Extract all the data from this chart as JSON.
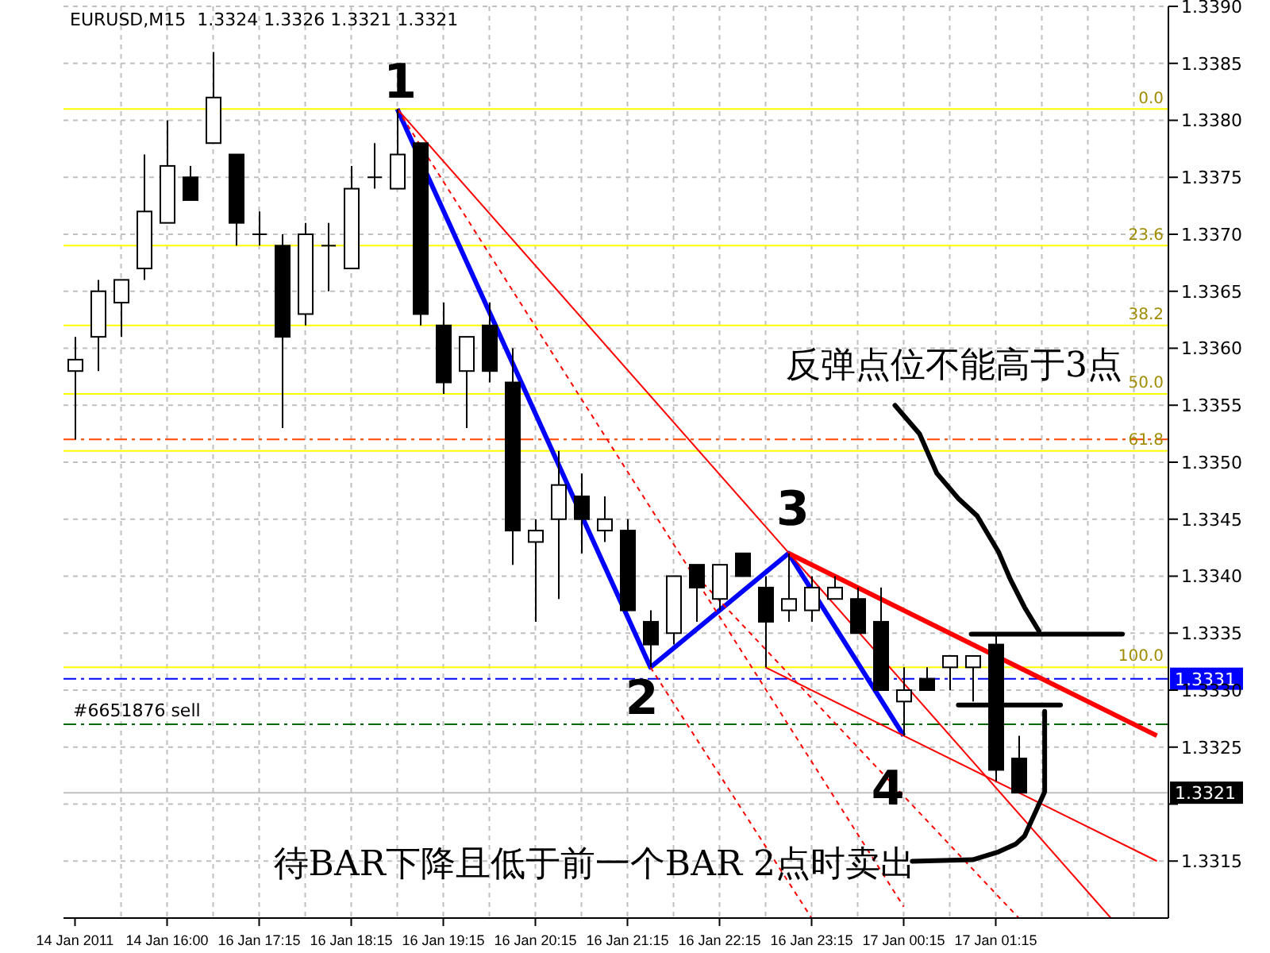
{
  "chart_data": {
    "type": "candlestick",
    "title": "EURUSD,M15  1.3324 1.3326 1.3321 1.3321",
    "categories": [
      "14 Jan 2011",
      null,
      null,
      null,
      "14 Jan 16:00",
      null,
      null,
      null,
      "16 Jan 17:15",
      null,
      null,
      null,
      "16 Jan 18:15",
      null,
      null,
      null,
      "16 Jan 19:15",
      null,
      null,
      null,
      "16 Jan 20:15",
      null,
      null,
      null,
      "16 Jan 21:15",
      null,
      null,
      null,
      "16 Jan 22:15",
      null,
      null,
      null,
      "16 Jan 23:15",
      null,
      null,
      null,
      "17 Jan 00:15",
      null,
      null,
      null,
      "17 Jan 01:15",
      null,
      null,
      null,
      null,
      null,
      null,
      null
    ],
    "ohlc": [
      [
        1.3358,
        1.3361,
        1.3352,
        1.3359
      ],
      [
        1.3361,
        1.3366,
        1.3358,
        1.3365
      ],
      [
        1.3364,
        1.3366,
        1.3361,
        1.3366
      ],
      [
        1.3367,
        1.3377,
        1.3366,
        1.3372
      ],
      [
        1.3371,
        1.338,
        1.3371,
        1.3376
      ],
      [
        1.3375,
        1.3376,
        1.3373,
        1.3373
      ],
      [
        1.3378,
        1.3386,
        1.3378,
        1.3382
      ],
      [
        1.3377,
        1.3377,
        1.3369,
        1.3371
      ],
      [
        1.337,
        1.3372,
        1.3369,
        1.337
      ],
      [
        1.3369,
        1.337,
        1.3353,
        1.3361
      ],
      [
        1.3363,
        1.3371,
        1.3362,
        1.337
      ],
      [
        1.3369,
        1.3371,
        1.3365,
        1.3369
      ],
      [
        1.3367,
        1.3376,
        1.3367,
        1.3374
      ],
      [
        1.3375,
        1.3378,
        1.3374,
        1.3375
      ],
      [
        1.3374,
        1.3381,
        1.3374,
        1.3377
      ],
      [
        1.3378,
        1.3378,
        1.3362,
        1.3363
      ],
      [
        1.3362,
        1.3364,
        1.3356,
        1.3357
      ],
      [
        1.3358,
        1.3361,
        1.3353,
        1.3361
      ],
      [
        1.3362,
        1.3364,
        1.3357,
        1.3358
      ],
      [
        1.3357,
        1.336,
        1.3341,
        1.3344
      ],
      [
        1.3343,
        1.3345,
        1.3336,
        1.3344
      ],
      [
        1.3345,
        1.3351,
        1.3338,
        1.3348
      ],
      [
        1.3347,
        1.3349,
        1.3342,
        1.3345
      ],
      [
        1.3344,
        1.3347,
        1.3343,
        1.3345
      ],
      [
        1.3344,
        1.3345,
        1.3337,
        1.3337
      ],
      [
        1.3336,
        1.3337,
        1.3332,
        1.3334
      ],
      [
        1.3335,
        1.334,
        1.3334,
        1.334
      ],
      [
        1.3341,
        1.3341,
        1.3336,
        1.3339
      ],
      [
        1.3338,
        1.3341,
        1.3337,
        1.3341
      ],
      [
        1.3342,
        1.3342,
        1.334,
        1.334
      ],
      [
        1.3339,
        1.334,
        1.3332,
        1.3336
      ],
      [
        1.3337,
        1.3342,
        1.3336,
        1.3338
      ],
      [
        1.3337,
        1.334,
        1.3336,
        1.3339
      ],
      [
        1.3338,
        1.334,
        1.3338,
        1.3339
      ],
      [
        1.3338,
        1.3339,
        1.3335,
        1.3335
      ],
      [
        1.3336,
        1.3339,
        1.333,
        1.333
      ],
      [
        1.3329,
        1.3332,
        1.3326,
        1.333
      ],
      [
        1.3331,
        1.3332,
        1.333,
        1.333
      ],
      [
        1.3332,
        1.3333,
        1.333,
        1.3333
      ],
      [
        1.3332,
        1.3333,
        1.3329,
        1.3333
      ],
      [
        1.3334,
        1.3335,
        1.3322,
        1.3323
      ],
      [
        1.3324,
        1.3326,
        1.3321,
        1.3321
      ],
      null,
      null,
      null,
      null,
      null,
      null
    ],
    "series": [
      {
        "type": "line",
        "color": "#0000ff",
        "line_style": "solid",
        "values": [
          null,
          null,
          null,
          null,
          null,
          null,
          null,
          null,
          null,
          null,
          null,
          null,
          null,
          null,
          1.3381,
          null,
          null,
          null,
          null,
          null,
          null,
          null,
          null,
          null,
          null,
          1.3332,
          null,
          null,
          null,
          null,
          null,
          1.3342,
          null,
          null,
          null,
          null,
          1.3326,
          null,
          null,
          null,
          null,
          null,
          null,
          null,
          null,
          null,
          null,
          null
        ]
      },
      {
        "type": "line",
        "color": "#ff0000",
        "line_style": "solid",
        "values": [
          null,
          null,
          null,
          null,
          null,
          null,
          null,
          null,
          null,
          null,
          null,
          null,
          null,
          null,
          null,
          null,
          null,
          null,
          null,
          null,
          null,
          null,
          null,
          null,
          null,
          null,
          null,
          null,
          null,
          null,
          null,
          1.3342,
          null,
          null,
          null,
          null,
          null,
          null,
          null,
          null,
          null,
          null,
          null,
          null,
          null,
          null,
          null,
          1.3326
        ]
      },
      {
        "type": "line",
        "color": "#ff0000",
        "line_style": "solid",
        "values": [
          null,
          null,
          null,
          null,
          null,
          null,
          null,
          null,
          null,
          null,
          null,
          null,
          null,
          null,
          1.3381,
          null,
          null,
          null,
          null,
          null,
          null,
          null,
          null,
          null,
          null,
          null,
          null,
          null,
          null,
          null,
          null,
          null,
          null,
          null,
          null,
          null,
          null,
          null,
          null,
          null,
          null,
          null,
          null,
          null,
          null,
          1.331,
          null,
          null
        ]
      },
      {
        "type": "line",
        "color": "#ff0000",
        "line_style": "solid",
        "values": [
          null,
          null,
          null,
          null,
          null,
          null,
          null,
          null,
          null,
          null,
          null,
          null,
          null,
          null,
          null,
          null,
          null,
          null,
          null,
          null,
          null,
          null,
          null,
          null,
          null,
          null,
          null,
          null,
          null,
          null,
          1.3332,
          null,
          null,
          null,
          null,
          null,
          null,
          null,
          null,
          null,
          null,
          null,
          null,
          null,
          null,
          null,
          null,
          1.3315
        ]
      },
      {
        "type": "line",
        "color": "#ff0000",
        "line_style": "dashed",
        "values": [
          null,
          null,
          null,
          null,
          null,
          null,
          null,
          null,
          null,
          null,
          null,
          null,
          null,
          null,
          1.3381,
          null,
          null,
          null,
          null,
          null,
          null,
          null,
          null,
          null,
          null,
          null,
          null,
          null,
          null,
          null,
          null,
          null,
          null,
          null,
          null,
          null,
          1.3311,
          null,
          null,
          null,
          null,
          null,
          null,
          null,
          null,
          null,
          null,
          null
        ]
      },
      {
        "type": "line",
        "color": "#ff0000",
        "line_style": "dashed",
        "values": [
          null,
          null,
          null,
          null,
          null,
          null,
          null,
          null,
          null,
          null,
          null,
          null,
          null,
          null,
          null,
          null,
          null,
          null,
          null,
          null,
          null,
          null,
          null,
          null,
          null,
          1.3332,
          null,
          null,
          null,
          null,
          null,
          null,
          1.331,
          null,
          null,
          null,
          null,
          null,
          null,
          null,
          null,
          null,
          null,
          null,
          null,
          null,
          null,
          null
        ]
      },
      {
        "type": "line",
        "color": "#ff0000",
        "line_style": "dashed",
        "values": [
          null,
          null,
          null,
          null,
          null,
          null,
          null,
          null,
          null,
          null,
          null,
          null,
          null,
          null,
          null,
          null,
          null,
          null,
          null,
          null,
          null,
          null,
          null,
          null,
          null,
          null,
          null,
          1.334,
          null,
          null,
          null,
          null,
          null,
          null,
          null,
          null,
          null,
          null,
          null,
          null,
          null,
          1.331,
          null,
          null,
          null,
          null,
          null,
          null
        ]
      }
    ],
    "ylim": [
      1.331,
      1.339
    ],
    "yticks": [
      1.3315,
      {
        "value": 1.332,
        "label": null
      },
      1.3325,
      {
        "value": 1.333,
        "label": "1.3330"
      },
      1.3335,
      {
        "value": 1.334,
        "label": "1.3340"
      },
      1.3345,
      {
        "value": 1.335,
        "label": "1.3350"
      },
      1.3355,
      {
        "value": 1.336,
        "label": "1.3360"
      },
      1.3365,
      {
        "value": 1.337,
        "label": "1.3370"
      },
      1.3375,
      {
        "value": 1.338,
        "label": "1.3380"
      },
      1.3385,
      {
        "value": 1.339,
        "label": "1.3390"
      }
    ],
    "ref_lines": [
      {
        "axis": "y",
        "value": 1.3381,
        "color": "#ffff00",
        "line_style": "solid"
      },
      {
        "axis": "y",
        "value": 1.3369,
        "color": "#ffff00",
        "line_style": "solid"
      },
      {
        "axis": "y",
        "value": 1.3362,
        "color": "#ffff00",
        "line_style": "solid"
      },
      {
        "axis": "y",
        "value": 1.3356,
        "color": "#ffff00",
        "line_style": "solid"
      },
      {
        "axis": "y",
        "value": 1.3351,
        "color": "#ffff00",
        "line_style": "solid"
      },
      {
        "axis": "y",
        "value": 1.3332,
        "color": "#ffff00",
        "line_style": "solid"
      },
      {
        "axis": "y",
        "value": 1.3352,
        "color": "#ff4500",
        "line_style": "dashed"
      },
      {
        "axis": "y",
        "value": 1.3331,
        "label": "1.3331",
        "color": "#0000ff",
        "line_style": "dashed"
      },
      {
        "axis": "y",
        "value": 1.3327,
        "label": "#6651876 sell",
        "color": "#006400",
        "line_style": "dashed"
      },
      {
        "axis": "y",
        "value": 1.3321,
        "label": "1.3321",
        "color": "#c0c0c0",
        "line_style": "solid"
      }
    ],
    "annotations": [
      "反弹点位不能高于3点",
      "待BAR下降且低于前一个BAR 2点时卖出",
      "1",
      "2",
      "3",
      "4",
      {
        "text": "0.0",
        "y": 1.3381
      },
      {
        "text": "23.6",
        "y": 1.3369
      },
      {
        "text": "38.2",
        "y": 1.3362
      },
      {
        "text": "50.0",
        "y": 1.3356
      },
      {
        "text": "61.8",
        "y": 1.3351
      },
      {
        "text": "100.0",
        "y": 1.3332
      }
    ],
    "grid": true,
    "legend": false,
    "marker": "none"
  }
}
